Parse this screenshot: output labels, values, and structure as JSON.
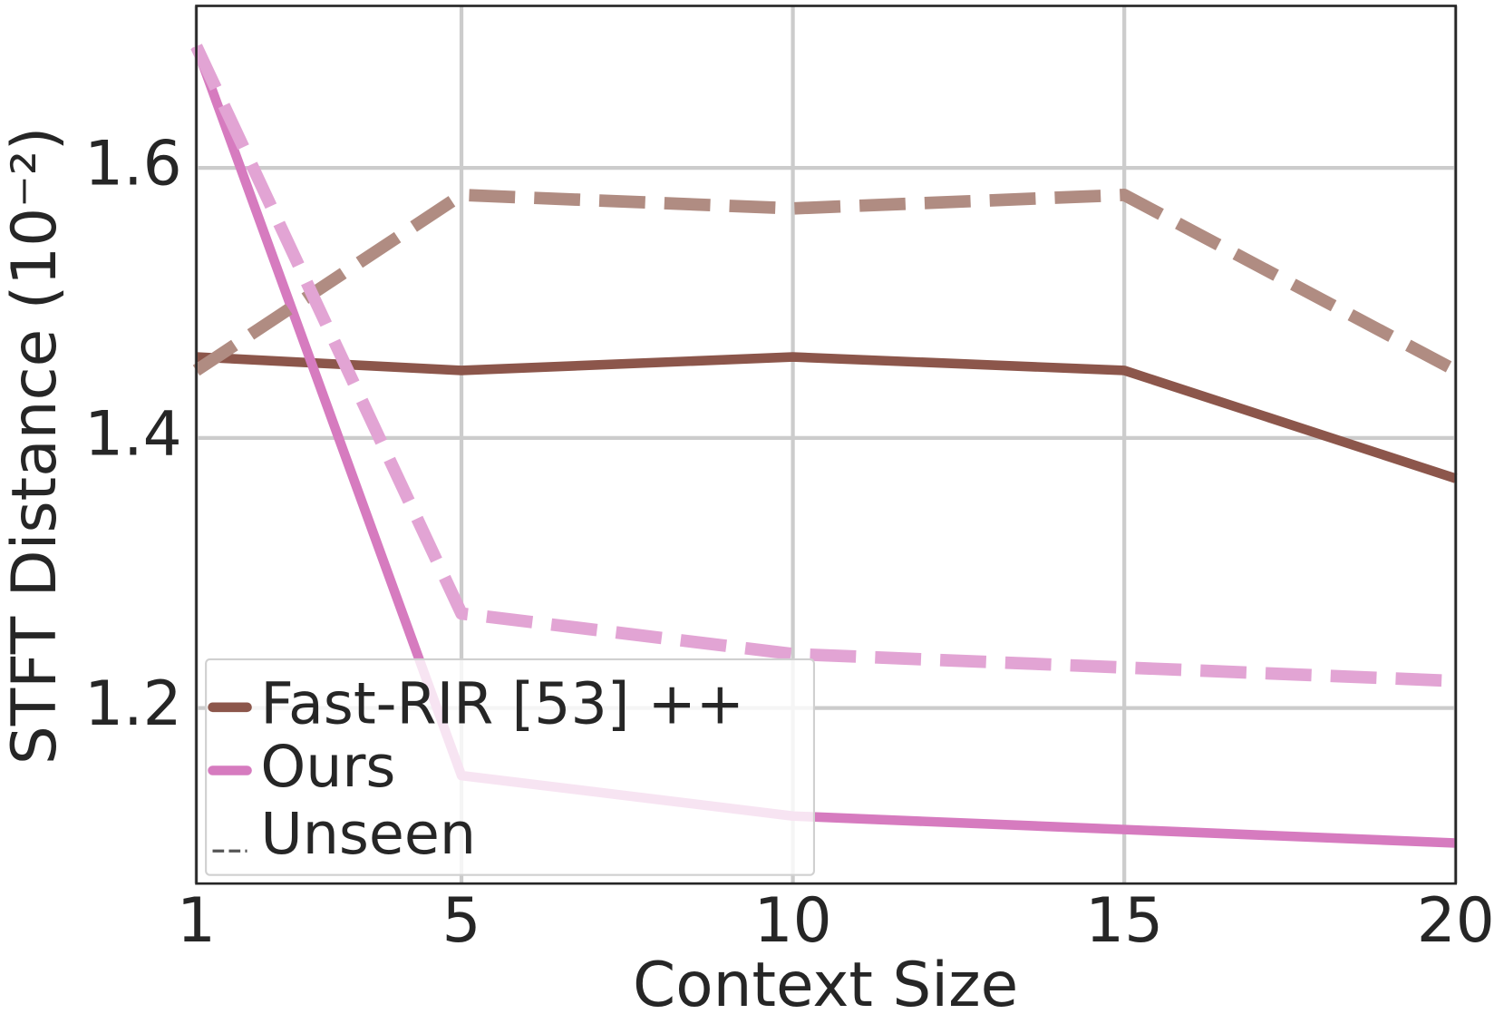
{
  "chart_data": {
    "type": "line",
    "x_label": "Context Size",
    "y_label": "STFT Distance (10⁻²)",
    "x": [
      1,
      5,
      10,
      15,
      20
    ],
    "xlim": [
      1,
      20
    ],
    "xticks": [
      1,
      5,
      10,
      15,
      20
    ],
    "ylim": [
      1.07,
      1.72
    ],
    "yticks": [
      1.2,
      1.4,
      1.6
    ],
    "grid": true,
    "legend": "lower left",
    "series": [
      {
        "name": "Fast-RIR [53] ++",
        "color": "#8c564b",
        "dashed": false,
        "values": [
          1.46,
          1.45,
          1.46,
          1.45,
          1.37
        ]
      },
      {
        "name": "Ours",
        "color": "#d67bbf",
        "dashed": false,
        "values": [
          1.69,
          1.15,
          1.12,
          1.11,
          1.1
        ]
      },
      {
        "color": "#b08c82",
        "dashed": true,
        "values": [
          1.45,
          1.58,
          1.57,
          1.58,
          1.45
        ]
      },
      {
        "color": "#e2a4d4",
        "dashed": true,
        "values": [
          1.69,
          1.27,
          1.24,
          1.23,
          1.22
        ]
      }
    ],
    "style_legend": {
      "label": "Unseen",
      "color": "#555555"
    }
  }
}
